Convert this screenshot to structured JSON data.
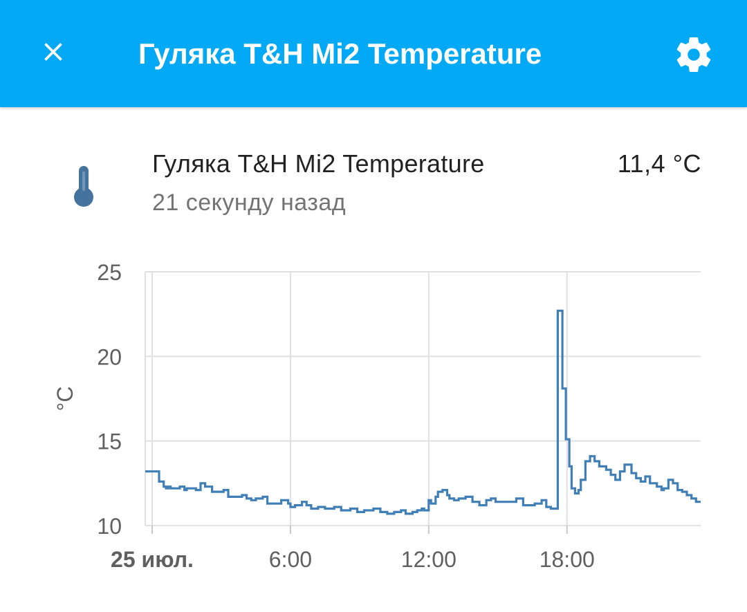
{
  "header": {
    "title": "Гуляка T&H Mi2 Temperature"
  },
  "entity": {
    "name": "Гуляка T&H Mi2 Temperature",
    "last_changed": "21 секунду назад",
    "state": "11,4 °C"
  },
  "icons": {
    "close": "close-icon",
    "settings": "gear-icon",
    "entity": "thermometer-icon"
  },
  "colors": {
    "header_bg": "#03a9f4",
    "series": "#3f7fb5",
    "entity_icon": "#44739e"
  },
  "chart_data": {
    "type": "line",
    "step": true,
    "title": "",
    "xlabel": "",
    "ylabel": "°C",
    "x_unit": "hour of day, 25 июл.",
    "xlim": [
      -0.3,
      23.8
    ],
    "ylim": [
      10,
      25
    ],
    "yticks": [
      "10",
      "15",
      "20",
      "25"
    ],
    "xticks": [
      {
        "x": 0,
        "label": "25 июл."
      },
      {
        "x": 6,
        "label": "6:00"
      },
      {
        "x": 12,
        "label": "12:00"
      },
      {
        "x": 18,
        "label": "18:00"
      }
    ],
    "grid": true,
    "series": [
      {
        "name": "",
        "x": [
          -0.3,
          0.1,
          0.3,
          0.5,
          0.6,
          0.7,
          0.8,
          1.0,
          1.2,
          1.4,
          1.5,
          1.7,
          1.9,
          2.1,
          2.3,
          2.6,
          2.8,
          3.1,
          3.3,
          3.6,
          3.9,
          4.1,
          4.3,
          4.5,
          4.8,
          5.0,
          5.3,
          5.6,
          5.9,
          6.0,
          6.2,
          6.5,
          6.7,
          6.9,
          7.2,
          7.5,
          7.9,
          8.2,
          8.6,
          8.9,
          9.2,
          9.6,
          9.9,
          10.2,
          10.5,
          10.8,
          11.0,
          11.3,
          11.5,
          11.7,
          11.8,
          12.0,
          12.1,
          12.3,
          12.4,
          12.6,
          12.8,
          12.9,
          13.1,
          13.3,
          13.6,
          13.9,
          14.2,
          14.5,
          14.7,
          14.9,
          15.2,
          15.5,
          15.8,
          16.1,
          16.3,
          16.6,
          16.9,
          17.1,
          17.3,
          17.5,
          17.6,
          17.8,
          17.95,
          18.1,
          18.2,
          18.35,
          18.5,
          18.6,
          18.8,
          19.0,
          19.2,
          19.4,
          19.7,
          19.9,
          20.1,
          20.3,
          20.5,
          20.8,
          21.0,
          21.2,
          21.4,
          21.6,
          21.9,
          22.1,
          22.2,
          22.4,
          22.6,
          22.8,
          23.0,
          23.2,
          23.4,
          23.6,
          23.8
        ],
        "y": [
          13.2,
          13.2,
          12.6,
          12.3,
          12.2,
          12.3,
          12.2,
          12.2,
          12.3,
          12.1,
          12.2,
          12.2,
          12.1,
          12.5,
          12.3,
          12.0,
          12.0,
          12.1,
          11.7,
          11.7,
          11.8,
          11.6,
          11.5,
          11.6,
          11.7,
          11.3,
          11.3,
          11.5,
          11.3,
          11.1,
          11.2,
          11.4,
          11.2,
          11.0,
          11.1,
          11.0,
          11.1,
          10.9,
          11.0,
          10.8,
          10.9,
          11.0,
          10.8,
          10.7,
          10.8,
          10.9,
          10.7,
          10.8,
          10.9,
          11.0,
          10.9,
          11.5,
          11.3,
          11.7,
          12.0,
          12.1,
          11.8,
          11.6,
          11.5,
          11.6,
          11.7,
          11.4,
          11.2,
          11.5,
          11.6,
          11.4,
          11.4,
          11.4,
          11.6,
          11.2,
          11.2,
          11.3,
          11.5,
          11.1,
          11.0,
          11.0,
          22.7,
          18.1,
          15.1,
          13.5,
          12.2,
          11.9,
          12.1,
          12.7,
          13.8,
          14.1,
          13.8,
          13.5,
          13.3,
          13.0,
          12.7,
          13.2,
          13.6,
          13.1,
          12.8,
          12.6,
          12.9,
          12.5,
          12.3,
          12.1,
          12.2,
          12.7,
          12.5,
          12.1,
          12.0,
          11.8,
          11.6,
          11.4,
          11.4
        ]
      }
    ]
  }
}
